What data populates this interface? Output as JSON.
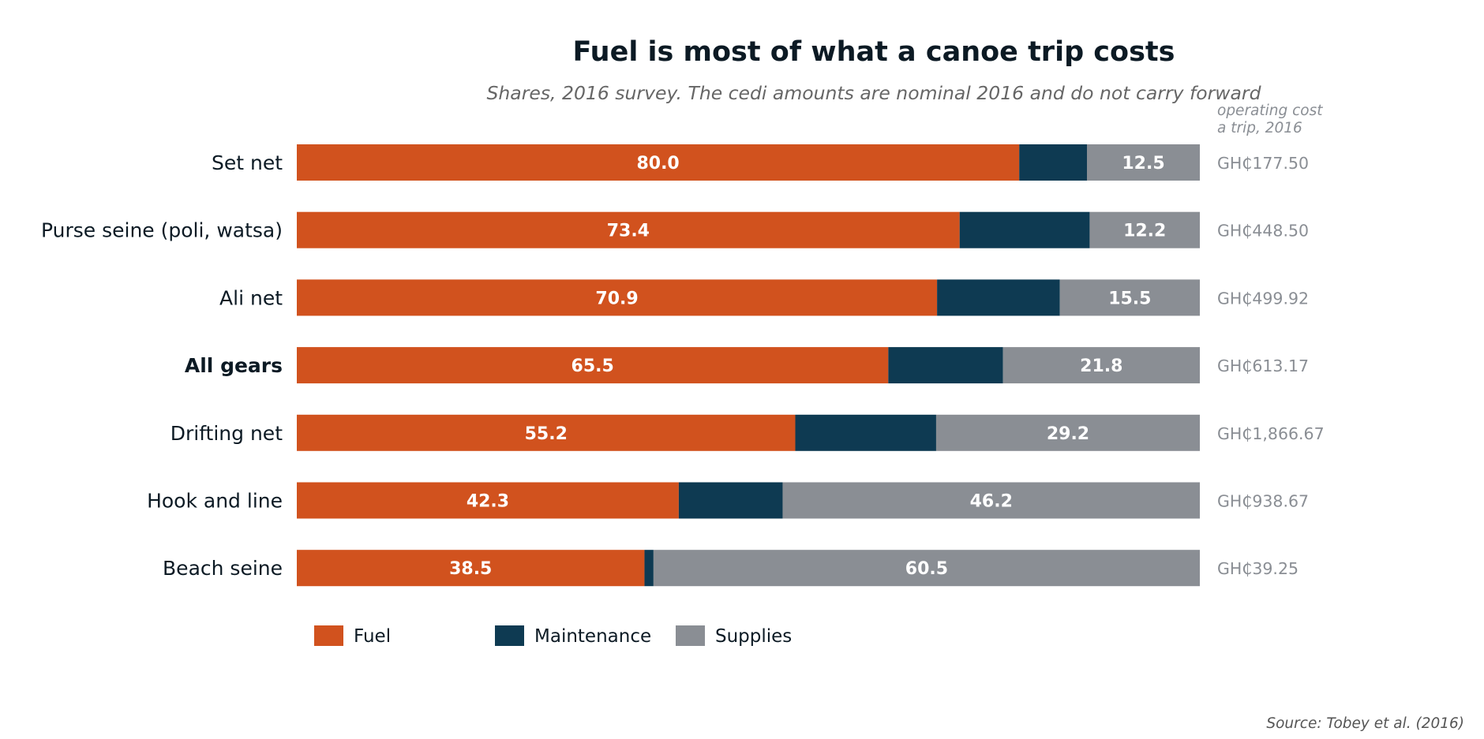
{
  "chart_data": {
    "type": "bar",
    "orientation": "horizontal",
    "stacked": true,
    "title": "Fuel is most of what a canoe trip costs",
    "subtitle": "Shares, 2016 survey. The cedi amounts are nominal 2016 and do not carry forward",
    "categories": [
      "Set net",
      "Purse seine (poli, watsa)",
      "Ali net",
      "All gears",
      "Drifting net",
      "Hook and line",
      "Beach seine"
    ],
    "highlight_category": "All gears",
    "series": [
      {
        "name": "Fuel",
        "color": "#d1521e",
        "values": [
          80.0,
          73.4,
          70.9,
          65.5,
          55.2,
          42.3,
          38.5
        ],
        "labels": [
          "80.0",
          "73.4",
          "70.9",
          "65.5",
          "55.2",
          "42.3",
          "38.5"
        ]
      },
      {
        "name": "Maintenance",
        "color": "#0e3a52",
        "values": [
          7.5,
          14.4,
          13.6,
          12.7,
          15.6,
          11.5,
          1.0
        ],
        "labels": [
          "",
          "",
          "",
          "",
          "",
          "",
          ""
        ]
      },
      {
        "name": "Supplies",
        "color": "#8a8e94",
        "values": [
          12.5,
          12.2,
          15.5,
          21.8,
          29.2,
          46.2,
          60.5
        ],
        "labels": [
          "12.5",
          "12.2",
          "15.5",
          "21.8",
          "29.2",
          "46.2",
          "60.5"
        ]
      }
    ],
    "xlim": [
      0,
      100
    ],
    "operating_cost_header": [
      "operating cost",
      "a trip, 2016"
    ],
    "operating_costs": [
      "GH₵177.50",
      "GH₵448.50",
      "GH₵499.92",
      "GH₵613.17",
      "GH₵1,866.67",
      "GH₵938.67",
      "GH₵39.25"
    ],
    "legend_position": "bottom-left",
    "grid": false,
    "source": "Source: Tobey et al. (2016)",
    "colors": {
      "title": "#0c1a24",
      "subtitle": "#666666",
      "category": "#0c1a24",
      "segment_label": "#ffffff",
      "cost": "#8a8e94",
      "cost_header": "#8a8e94",
      "source": "#555555"
    }
  }
}
